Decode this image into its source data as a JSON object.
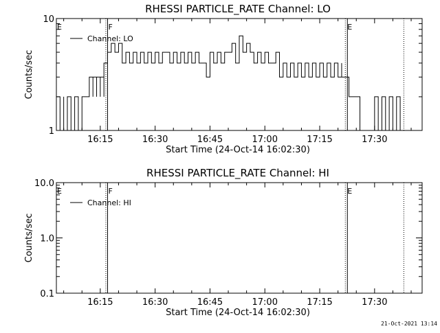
{
  "footer": {
    "timestamp": "21-Oct-2021 13:14"
  },
  "chart_data": [
    {
      "type": "line",
      "title": "RHESSI PARTICLE_RATE Channel: LO",
      "xlabel": "Start Time (24-Oct-14 16:02:30)",
      "ylabel": "Counts/sec",
      "yscale": "log",
      "xlim": [
        "16:03",
        "17:43"
      ],
      "ylim": [
        1,
        10
      ],
      "xticks": [
        "16:15",
        "16:30",
        "16:45",
        "17:00",
        "17:15",
        "17:30"
      ],
      "yticks": [
        "1",
        "10"
      ],
      "legend": {
        "position": "top-left",
        "entries": [
          "Channel: LO"
        ]
      },
      "markers": [
        {
          "label": "E",
          "time": "16:03",
          "style": "none"
        },
        {
          "label": "F",
          "time": "16:17",
          "style": "solid"
        },
        {
          "label": "E",
          "time": "17:22",
          "style": "dotted-solid"
        },
        {
          "label": "",
          "time": "17:38",
          "style": "dotted"
        }
      ],
      "series": [
        {
          "name": "Channel: LO",
          "x": [
            "16:03",
            "16:04",
            "16:05",
            "16:05",
            "16:06",
            "16:07",
            "16:08",
            "16:09",
            "16:10",
            "16:12",
            "16:12",
            "16:13",
            "16:13",
            "16:14",
            "16:14",
            "16:15",
            "16:15",
            "16:16",
            "16:16",
            "16:17",
            "16:17",
            "16:18",
            "16:19",
            "16:20",
            "16:21",
            "16:21",
            "16:22",
            "16:23",
            "16:24",
            "16:25",
            "16:26",
            "16:27",
            "16:28",
            "16:29",
            "16:30",
            "16:31",
            "16:32",
            "16:33",
            "16:34",
            "16:35",
            "16:36",
            "16:37",
            "16:38",
            "16:39",
            "16:40",
            "16:41",
            "16:42",
            "16:43",
            "16:44",
            "16:45",
            "16:46",
            "16:47",
            "16:48",
            "16:49",
            "16:50",
            "16:51",
            "16:52",
            "16:53",
            "16:54",
            "16:55",
            "16:56",
            "16:57",
            "16:58",
            "16:59",
            "17:00",
            "17:01",
            "17:02",
            "17:03",
            "17:04",
            "17:05",
            "17:06",
            "17:07",
            "17:08",
            "17:09",
            "17:10",
            "17:11",
            "17:12",
            "17:13",
            "17:14",
            "17:15",
            "17:16",
            "17:17",
            "17:18",
            "17:19",
            "17:20",
            "17:21",
            "17:21",
            "17:22",
            "17:23",
            "17:24",
            "17:25",
            "17:26",
            "17:27",
            "17:28",
            "17:29",
            "17:30",
            "17:31",
            "17:32",
            "17:33",
            "17:34",
            "17:35",
            "17:36",
            "17:37"
          ],
          "y": [
            2,
            1,
            2,
            1,
            2,
            1,
            2,
            1,
            2,
            2,
            3,
            2,
            3,
            2,
            3,
            2,
            3,
            2,
            4,
            4,
            5,
            6,
            5,
            6,
            5,
            4,
            5,
            4,
            5,
            4,
            5,
            4,
            5,
            4,
            5,
            4,
            5,
            5,
            4,
            5,
            4,
            5,
            4,
            5,
            4,
            5,
            4,
            4,
            3,
            5,
            4,
            5,
            4,
            5,
            5,
            6,
            4,
            7,
            5,
            6,
            5,
            4,
            5,
            4,
            5,
            4,
            4,
            5,
            3,
            4,
            3,
            4,
            3,
            4,
            3,
            4,
            3,
            4,
            3,
            4,
            3,
            4,
            3,
            4,
            3,
            4,
            3,
            3,
            2,
            2,
            2,
            1,
            1,
            1,
            1,
            2,
            1,
            2,
            1,
            2,
            1,
            2,
            1
          ]
        }
      ]
    },
    {
      "type": "line",
      "title": "RHESSI PARTICLE_RATE Channel: HI",
      "xlabel": "Start Time (24-Oct-14 16:02:30)",
      "ylabel": "Counts/sec",
      "yscale": "log",
      "xlim": [
        "16:03",
        "17:43"
      ],
      "ylim": [
        0.1,
        10
      ],
      "xticks": [
        "16:15",
        "16:30",
        "16:45",
        "17:00",
        "17:15",
        "17:30"
      ],
      "yticks": [
        "0.1",
        "1.0",
        "10.0"
      ],
      "legend": {
        "position": "top-left",
        "entries": [
          "Channel: HI"
        ]
      },
      "markers": [
        {
          "label": "E",
          "time": "16:03",
          "style": "none"
        },
        {
          "label": "F",
          "time": "16:17",
          "style": "solid"
        },
        {
          "label": "E",
          "time": "17:22",
          "style": "dotted-solid"
        },
        {
          "label": "",
          "time": "17:38",
          "style": "dotted"
        }
      ],
      "series": [
        {
          "name": "Channel: HI",
          "x": [],
          "y": []
        }
      ]
    }
  ]
}
